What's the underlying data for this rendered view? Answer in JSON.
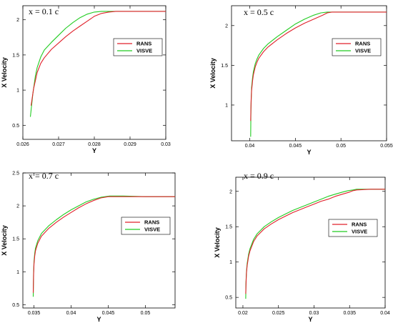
{
  "colors": {
    "rans": "#e0202a",
    "visve": "#22cc22",
    "axis": "#000000"
  },
  "chart_data": [
    {
      "type": "line",
      "title": "x = 0.1 c",
      "xlabel": "Y",
      "ylabel": "X Velocity",
      "xlim": [
        0.026,
        0.03
      ],
      "ylim": [
        0.3,
        2.2
      ],
      "xticks": [
        0.026,
        0.027,
        0.028,
        0.029,
        0.03
      ],
      "xticklabels": [
        "0.026",
        "0.027",
        "0.028",
        "0.029",
        "0.03"
      ],
      "yticks": [
        0.5,
        1,
        1.5,
        2
      ],
      "yticklabels": [
        "0.5",
        "1",
        "1.5",
        "2"
      ],
      "legend_position": "right",
      "series": [
        {
          "name": "RANS",
          "x": [
            0.02623,
            0.0263,
            0.0264,
            0.0265,
            0.0266,
            0.0268,
            0.027,
            0.0272,
            0.0274,
            0.0276,
            0.0278,
            0.028,
            0.0282,
            0.0284,
            0.0286,
            0.029,
            0.0295,
            0.03
          ],
          "y": [
            0.78,
            1.02,
            1.25,
            1.38,
            1.46,
            1.58,
            1.67,
            1.76,
            1.84,
            1.91,
            1.98,
            2.05,
            2.09,
            2.11,
            2.12,
            2.12,
            2.12,
            2.12
          ]
        },
        {
          "name": "VISVE",
          "x": [
            0.02621,
            0.02628,
            0.02635,
            0.0264,
            0.0265,
            0.0266,
            0.0268,
            0.027,
            0.0272,
            0.0274,
            0.0276,
            0.0278,
            0.028,
            0.0282,
            0.0285,
            0.029,
            0.0295,
            0.03
          ],
          "y": [
            0.62,
            0.95,
            1.2,
            1.32,
            1.47,
            1.57,
            1.68,
            1.78,
            1.88,
            1.96,
            2.03,
            2.08,
            2.11,
            2.12,
            2.12,
            2.12,
            2.12,
            2.12
          ]
        }
      ]
    },
    {
      "type": "line",
      "title": "x = 0.5 c",
      "xlabel": "Y",
      "ylabel": "X Velocity",
      "xlim": [
        0.038,
        0.055
      ],
      "ylim": [
        0.55,
        2.25
      ],
      "xticks": [
        0.04,
        0.045,
        0.05,
        0.055
      ],
      "xticklabels": [
        "0.04",
        "0.045",
        "0.05",
        "0.055"
      ],
      "yticks": [
        1,
        1.5,
        2
      ],
      "yticklabels": [
        "1",
        "1.5",
        "2"
      ],
      "legend_position": "right",
      "series": [
        {
          "name": "RANS",
          "x": [
            0.0401,
            0.04015,
            0.0402,
            0.0403,
            0.0404,
            0.0406,
            0.0408,
            0.041,
            0.0415,
            0.042,
            0.043,
            0.044,
            0.045,
            0.046,
            0.047,
            0.048,
            0.0485,
            0.049,
            0.05,
            0.052,
            0.055
          ],
          "y": [
            0.8,
            1.05,
            1.18,
            1.3,
            1.38,
            1.48,
            1.54,
            1.59,
            1.67,
            1.73,
            1.82,
            1.9,
            1.97,
            2.03,
            2.08,
            2.13,
            2.16,
            2.17,
            2.17,
            2.17,
            2.17
          ]
        },
        {
          "name": "VISVE",
          "x": [
            0.0401,
            0.04013,
            0.0402,
            0.0403,
            0.0404,
            0.0406,
            0.0408,
            0.041,
            0.0415,
            0.042,
            0.043,
            0.044,
            0.045,
            0.046,
            0.047,
            0.0478,
            0.0485,
            0.049,
            0.05,
            0.052,
            0.055
          ],
          "y": [
            0.6,
            0.95,
            1.22,
            1.34,
            1.42,
            1.52,
            1.58,
            1.63,
            1.71,
            1.77,
            1.86,
            1.94,
            2.02,
            2.08,
            2.13,
            2.16,
            2.17,
            2.17,
            2.17,
            2.17,
            2.17
          ]
        }
      ]
    },
    {
      "type": "line",
      "title": "x = 0.7 c",
      "xlabel": "Y",
      "ylabel": "X Velocity",
      "xlim": [
        0.0335,
        0.054
      ],
      "ylim": [
        0.45,
        2.5
      ],
      "xticks": [
        0.035,
        0.04,
        0.045,
        0.05
      ],
      "xticklabels": [
        "0.035",
        "0.04",
        "0.045",
        "0.05"
      ],
      "yticks": [
        0.5,
        1,
        1.5,
        2,
        2.5
      ],
      "yticklabels": [
        "0.5",
        "1",
        "1.5",
        "2",
        "2.5"
      ],
      "legend_position": "right",
      "series": [
        {
          "name": "RANS",
          "x": [
            0.0349,
            0.03495,
            0.035,
            0.0351,
            0.0352,
            0.0355,
            0.036,
            0.037,
            0.038,
            0.039,
            0.04,
            0.041,
            0.042,
            0.043,
            0.044,
            0.045,
            0.046,
            0.047,
            0.05,
            0.054
          ],
          "y": [
            0.68,
            0.98,
            1.12,
            1.24,
            1.32,
            1.43,
            1.54,
            1.66,
            1.75,
            1.83,
            1.9,
            1.97,
            2.03,
            2.08,
            2.12,
            2.14,
            2.14,
            2.14,
            2.14,
            2.14
          ]
        },
        {
          "name": "VISVE",
          "x": [
            0.0349,
            0.03493,
            0.035,
            0.0351,
            0.0352,
            0.0355,
            0.036,
            0.037,
            0.038,
            0.039,
            0.04,
            0.041,
            0.042,
            0.043,
            0.044,
            0.0452,
            0.046,
            0.047,
            0.05,
            0.054
          ],
          "y": [
            0.62,
            0.95,
            1.16,
            1.28,
            1.36,
            1.47,
            1.58,
            1.7,
            1.79,
            1.87,
            1.94,
            2.0,
            2.06,
            2.1,
            2.13,
            2.15,
            2.15,
            2.15,
            2.14,
            2.14
          ]
        }
      ]
    },
    {
      "type": "line",
      "title": "x = 0.9 c",
      "xlabel": "Y",
      "ylabel": "X Velocity",
      "xlim": [
        0.019,
        0.04
      ],
      "ylim": [
        0.35,
        2.2
      ],
      "xticks": [
        0.02,
        0.025,
        0.03,
        0.035,
        0.04
      ],
      "xticklabels": [
        "0.02",
        "0.025",
        "0.03",
        "0.035",
        "0.04"
      ],
      "yticks": [
        0.5,
        1,
        1.5,
        2
      ],
      "yticklabels": [
        "0.5",
        "1",
        "1.5",
        "2"
      ],
      "legend_position": "right",
      "series": [
        {
          "name": "RANS",
          "x": [
            0.0204,
            0.02045,
            0.0205,
            0.0206,
            0.0208,
            0.021,
            0.0215,
            0.022,
            0.023,
            0.024,
            0.025,
            0.026,
            0.027,
            0.028,
            0.029,
            0.03,
            0.031,
            0.032,
            0.033,
            0.034,
            0.035,
            0.0355,
            0.036,
            0.038,
            0.04
          ],
          "y": [
            0.55,
            0.72,
            0.84,
            0.95,
            1.08,
            1.16,
            1.29,
            1.37,
            1.47,
            1.54,
            1.6,
            1.65,
            1.7,
            1.74,
            1.78,
            1.82,
            1.86,
            1.89,
            1.93,
            1.96,
            1.99,
            2.01,
            2.02,
            2.03,
            2.03
          ]
        },
        {
          "name": "VISVE",
          "x": [
            0.0204,
            0.02043,
            0.0205,
            0.0206,
            0.0208,
            0.021,
            0.0215,
            0.022,
            0.023,
            0.024,
            0.025,
            0.026,
            0.027,
            0.028,
            0.029,
            0.03,
            0.031,
            0.032,
            0.033,
            0.034,
            0.0348,
            0.0355,
            0.036,
            0.038,
            0.04
          ],
          "y": [
            0.48,
            0.7,
            0.86,
            0.98,
            1.11,
            1.19,
            1.32,
            1.4,
            1.5,
            1.57,
            1.63,
            1.68,
            1.73,
            1.77,
            1.81,
            1.85,
            1.89,
            1.93,
            1.96,
            1.99,
            2.01,
            2.02,
            2.03,
            2.03,
            2.03
          ]
        }
      ]
    }
  ]
}
